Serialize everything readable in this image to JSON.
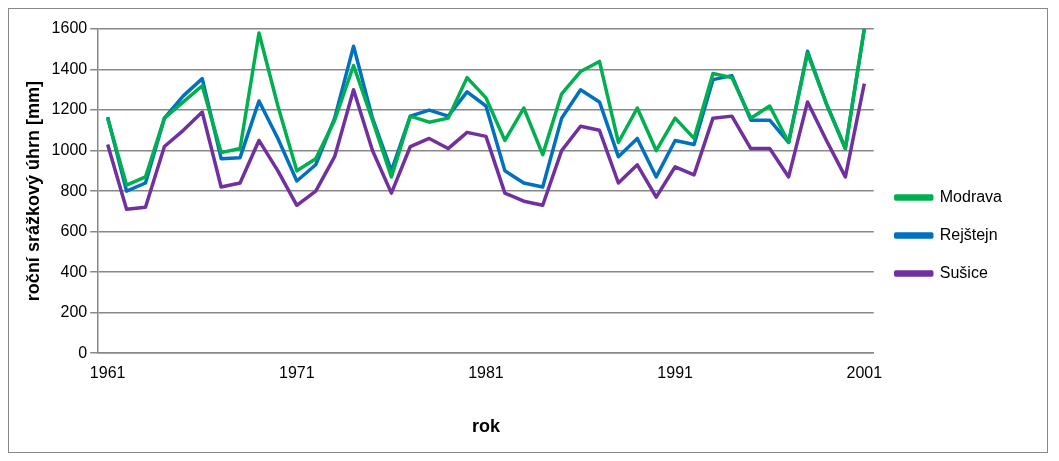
{
  "chart_data": {
    "type": "line",
    "xlabel": "rok",
    "ylabel": "roční srážkový úhrn [mm]",
    "x": [
      1961,
      1962,
      1963,
      1964,
      1965,
      1966,
      1967,
      1968,
      1969,
      1970,
      1971,
      1972,
      1973,
      1974,
      1975,
      1976,
      1977,
      1978,
      1979,
      1980,
      1981,
      1982,
      1983,
      1984,
      1985,
      1986,
      1987,
      1988,
      1989,
      1990,
      1991,
      1992,
      1993,
      1994,
      1995,
      1996,
      1997,
      1998,
      1999,
      2000,
      2001
    ],
    "series": [
      {
        "name": "Modrava",
        "color": "#00b050",
        "values": [
          1160,
          830,
          870,
          1160,
          1240,
          1320,
          990,
          1010,
          1580,
          1220,
          900,
          960,
          1150,
          1420,
          1150,
          870,
          1170,
          1140,
          1160,
          1360,
          1260,
          1050,
          1210,
          980,
          1280,
          1390,
          1440,
          1040,
          1210,
          1000,
          1160,
          1060,
          1380,
          1360,
          1160,
          1220,
          1040,
          1480,
          1230,
          1010,
          1600
        ]
      },
      {
        "name": "Rejštejn",
        "color": "#0070c0",
        "values": [
          1165,
          800,
          840,
          1160,
          1270,
          1355,
          960,
          965,
          1245,
          1060,
          850,
          930,
          1160,
          1515,
          1160,
          900,
          1170,
          1200,
          1170,
          1290,
          1220,
          900,
          840,
          820,
          1160,
          1300,
          1240,
          970,
          1060,
          870,
          1050,
          1030,
          1350,
          1370,
          1150,
          1150,
          1040,
          1490,
          1230,
          1010,
          1600
        ]
      },
      {
        "name": "Sušice",
        "color": "#7030a0",
        "values": [
          1030,
          710,
          720,
          1020,
          1100,
          1190,
          820,
          840,
          1050,
          900,
          730,
          800,
          970,
          1300,
          1000,
          790,
          1020,
          1060,
          1010,
          1090,
          1070,
          790,
          750,
          730,
          1000,
          1120,
          1100,
          840,
          930,
          770,
          920,
          880,
          1160,
          1170,
          1010,
          1010,
          870,
          1240,
          1050,
          870,
          1330
        ]
      }
    ],
    "xlim": [
      1960.5,
      2001.5
    ],
    "xticks": [
      1961,
      1971,
      1981,
      1991,
      2001
    ],
    "ylim": [
      0,
      1600
    ],
    "yticks": [
      0,
      200,
      400,
      600,
      800,
      1000,
      1200,
      1400,
      1600
    ],
    "grid": "y",
    "legend": "right",
    "marker": "none",
    "line_style": "solid"
  }
}
